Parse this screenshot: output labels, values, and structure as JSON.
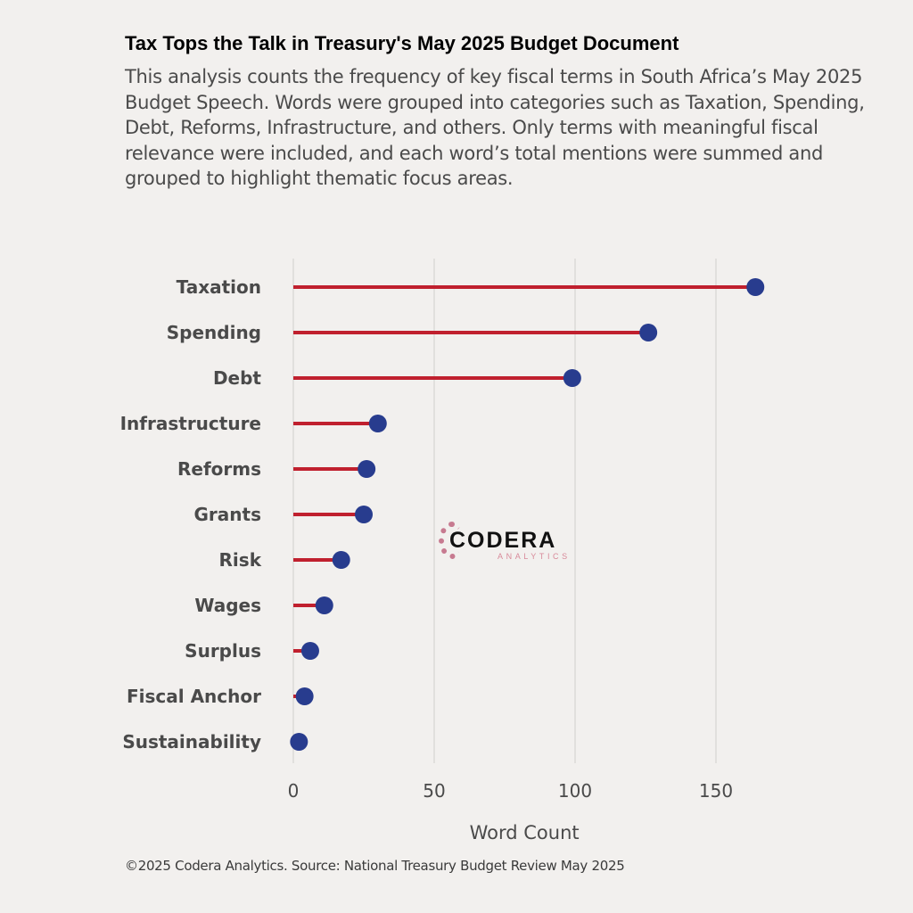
{
  "chart_data": {
    "type": "lollipop",
    "title": "Tax Tops the Talk in Treasury's May 2025 Budget Document",
    "subtitle": "This analysis counts the frequency of key fiscal terms in South Africa’s May 2025 Budget Speech. Words were grouped into categories such as Taxation, Spending, Debt, Reforms, Infrastructure, and others. Only terms with meaningful fiscal relevance were included, and each word’s total mentions were summed and grouped to highlight thematic focus areas.",
    "categories": [
      "Taxation",
      "Spending",
      "Debt",
      "Infrastructure",
      "Reforms",
      "Grants",
      "Risk",
      "Wages",
      "Surplus",
      "Fiscal Anchor",
      "Sustainability"
    ],
    "values": [
      164,
      126,
      99,
      30,
      26,
      25,
      17,
      11,
      6,
      4,
      2
    ],
    "xlabel": "Word Count",
    "ylabel": "",
    "xlim": [
      0,
      170
    ],
    "xticks": [
      0,
      50,
      100,
      150
    ],
    "grid": "vertical",
    "caption": "©2025 Codera Analytics. Source: National Treasury Budget Review May 2025",
    "colors": {
      "stem": "#c0202e",
      "dot": "#283c8e",
      "grid": "#d6d4d2",
      "text": "#4a4a4a"
    }
  },
  "logo": {
    "name": "CODERA",
    "sub": "ANALYTICS"
  }
}
